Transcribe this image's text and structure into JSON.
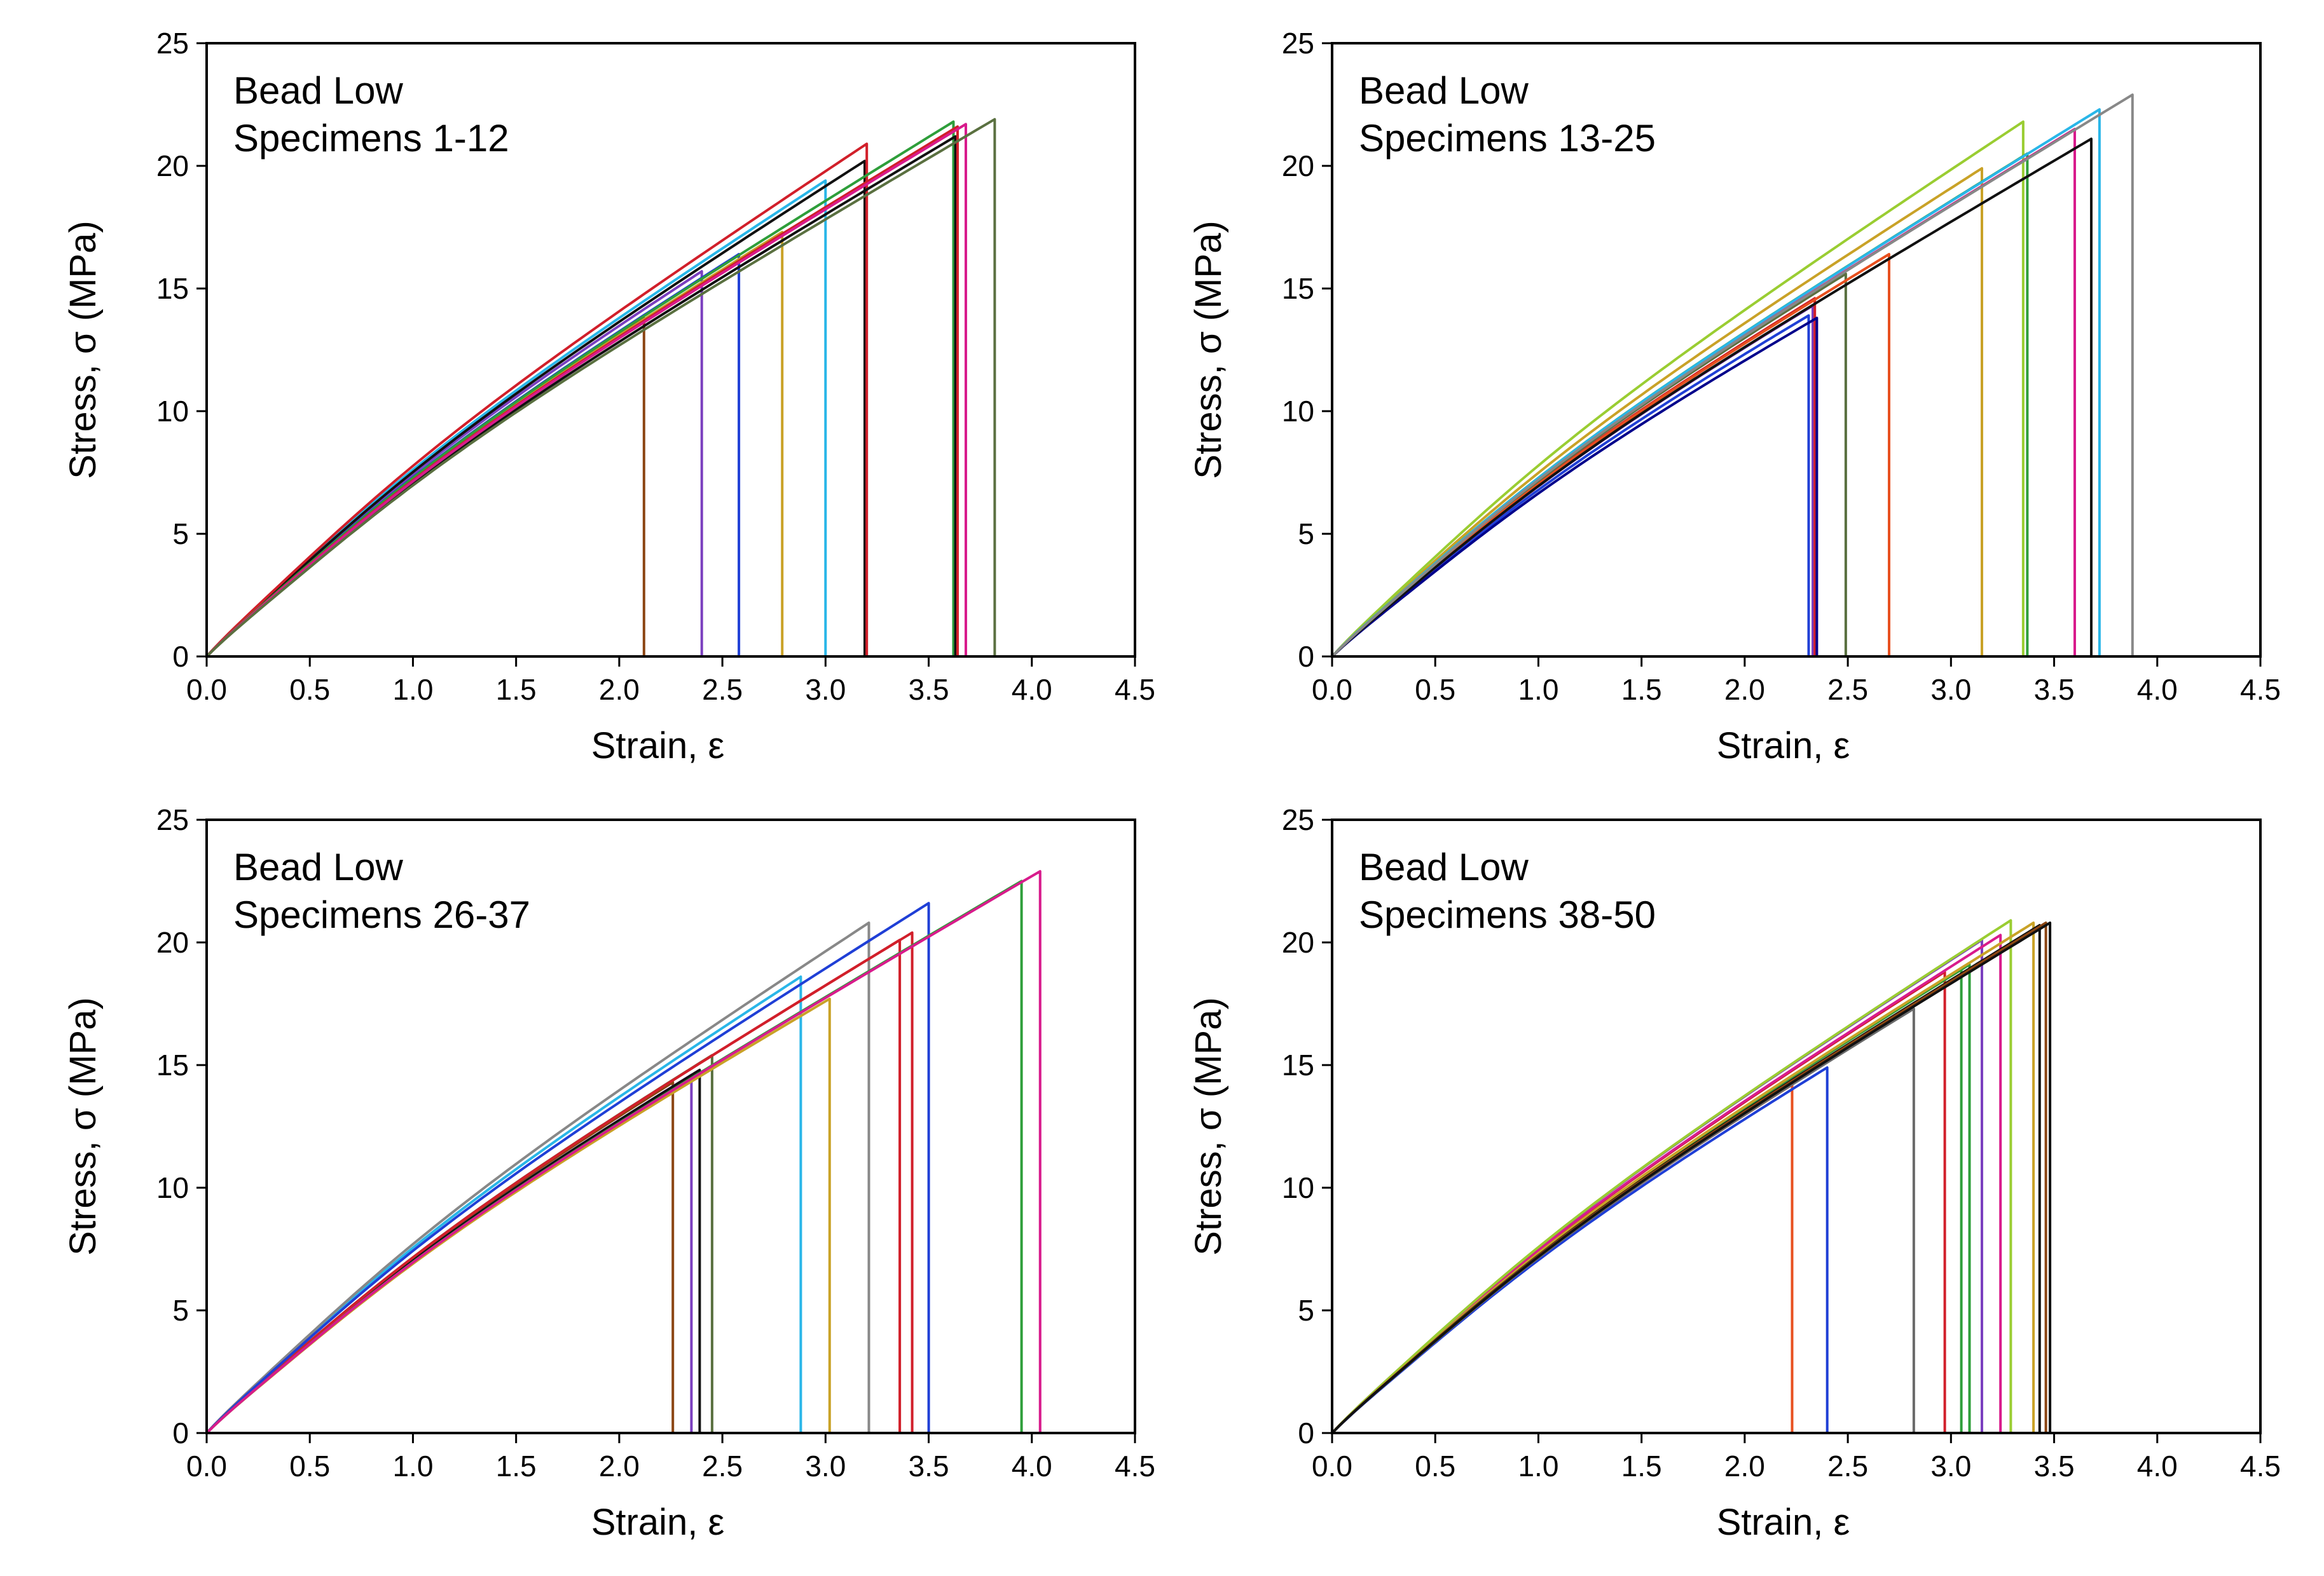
{
  "colors": {
    "palette": [
      "#8b4513",
      "#7b3fbf",
      "#1f3fd6",
      "#c9a227",
      "#29b6e8",
      "#111111",
      "#d11f2a",
      "#2e9e3a",
      "#d81b8c",
      "#5a7040",
      "#888888",
      "#9acd32",
      "#e8501f",
      "#00008b",
      "#6a6a6a"
    ]
  },
  "chart_data": [
    {
      "type": "line",
      "title": "",
      "annotation_line1": "Bead Low",
      "annotation_line2": "Specimens 1-12",
      "xlabel": "Strain, ε",
      "ylabel": "Stress, σ (MPa)",
      "xlim": [
        0,
        4.5
      ],
      "ylim": [
        0,
        25
      ],
      "xticks": [
        "0.0",
        "0.5",
        "1.0",
        "1.5",
        "2.0",
        "2.5",
        "3.0",
        "3.5",
        "4.0",
        "4.5"
      ],
      "yticks": [
        "0",
        "5",
        "10",
        "15",
        "20",
        "25"
      ],
      "series": [
        {
          "name": "specimen-1",
          "color": "#8b4513",
          "failure_strain": 2.12,
          "peak_stress": 13.8,
          "knee": 0.96
        },
        {
          "name": "specimen-2",
          "color": "#7b3fbf",
          "failure_strain": 2.4,
          "peak_stress": 15.7,
          "knee": 1.0
        },
        {
          "name": "specimen-3",
          "color": "#1f3fd6",
          "failure_strain": 2.58,
          "peak_stress": 16.4,
          "knee": 1.0
        },
        {
          "name": "specimen-4",
          "color": "#c9a227",
          "failure_strain": 2.79,
          "peak_stress": 17.3,
          "knee": 1.0
        },
        {
          "name": "specimen-5",
          "color": "#29b6e8",
          "failure_strain": 3.0,
          "peak_stress": 19.4,
          "knee": 1.02
        },
        {
          "name": "specimen-6",
          "color": "#111111",
          "failure_strain": 3.19,
          "peak_stress": 20.2,
          "knee": 1.0
        },
        {
          "name": "specimen-7",
          "color": "#d11f2a",
          "failure_strain": 3.2,
          "peak_stress": 20.9,
          "knee": 1.03
        },
        {
          "name": "specimen-8",
          "color": "#2e9e3a",
          "failure_strain": 3.62,
          "peak_stress": 21.8,
          "knee": 0.98
        },
        {
          "name": "specimen-9",
          "color": "#111111",
          "failure_strain": 3.63,
          "peak_stress": 21.2,
          "knee": 0.97
        },
        {
          "name": "specimen-10",
          "color": "#d11f2a",
          "failure_strain": 3.64,
          "peak_stress": 21.6,
          "knee": 0.99
        },
        {
          "name": "specimen-11",
          "color": "#d81b8c",
          "failure_strain": 3.68,
          "peak_stress": 21.7,
          "knee": 0.98
        },
        {
          "name": "specimen-12",
          "color": "#5a7040",
          "failure_strain": 3.82,
          "peak_stress": 21.9,
          "knee": 0.97
        }
      ]
    },
    {
      "type": "line",
      "title": "",
      "annotation_line1": "Bead Low",
      "annotation_line2": "Specimens 13-25",
      "xlabel": "Strain, ε",
      "ylabel": "Stress, σ (MPa)",
      "xlim": [
        0,
        4.5
      ],
      "ylim": [
        0,
        25
      ],
      "xticks": [
        "0.0",
        "0.5",
        "1.0",
        "1.5",
        "2.0",
        "2.5",
        "3.0",
        "3.5",
        "4.0",
        "4.5"
      ],
      "yticks": [
        "0",
        "5",
        "10",
        "15",
        "20",
        "25"
      ],
      "series": [
        {
          "name": "specimen-13",
          "color": "#1f3fd6",
          "failure_strain": 2.31,
          "peak_stress": 13.9,
          "knee": 1.0
        },
        {
          "name": "specimen-14",
          "color": "#7b3fbf",
          "failure_strain": 2.33,
          "peak_stress": 14.3,
          "knee": 1.0
        },
        {
          "name": "specimen-15",
          "color": "#d11f2a",
          "failure_strain": 2.34,
          "peak_stress": 14.6,
          "knee": 1.0
        },
        {
          "name": "specimen-16",
          "color": "#00008b",
          "failure_strain": 2.35,
          "peak_stress": 13.8,
          "knee": 1.0
        },
        {
          "name": "specimen-17",
          "color": "#5a7040",
          "failure_strain": 2.49,
          "peak_stress": 15.6,
          "knee": 1.0
        },
        {
          "name": "specimen-18",
          "color": "#e8501f",
          "failure_strain": 2.7,
          "peak_stress": 16.4,
          "knee": 1.0
        },
        {
          "name": "specimen-19",
          "color": "#c9a227",
          "failure_strain": 3.15,
          "peak_stress": 19.9,
          "knee": 1.0
        },
        {
          "name": "specimen-20",
          "color": "#9acd32",
          "failure_strain": 3.35,
          "peak_stress": 21.8,
          "knee": 1.0
        },
        {
          "name": "specimen-21",
          "color": "#2e9e3a",
          "failure_strain": 3.37,
          "peak_stress": 20.5,
          "knee": 1.0
        },
        {
          "name": "specimen-22",
          "color": "#d81b8c",
          "failure_strain": 3.6,
          "peak_stress": 21.5,
          "knee": 1.0
        },
        {
          "name": "specimen-23",
          "color": "#111111",
          "failure_strain": 3.68,
          "peak_stress": 21.1,
          "knee": 1.0
        },
        {
          "name": "specimen-24",
          "color": "#29b6e8",
          "failure_strain": 3.72,
          "peak_stress": 22.3,
          "knee": 1.0
        },
        {
          "name": "specimen-25",
          "color": "#888888",
          "failure_strain": 3.88,
          "peak_stress": 22.9,
          "knee": 1.0
        }
      ]
    },
    {
      "type": "line",
      "title": "",
      "annotation_line1": "Bead Low",
      "annotation_line2": "Specimens 26-37",
      "xlabel": "Strain, ε",
      "ylabel": "Stress, σ (MPa)",
      "xlim": [
        0,
        4.5
      ],
      "ylim": [
        0,
        25
      ],
      "xticks": [
        "0.0",
        "0.5",
        "1.0",
        "1.5",
        "2.0",
        "2.5",
        "3.0",
        "3.5",
        "4.0",
        "4.5"
      ],
      "yticks": [
        "0",
        "5",
        "10",
        "15",
        "20",
        "25"
      ],
      "series": [
        {
          "name": "specimen-26",
          "color": "#8b4513",
          "failure_strain": 2.26,
          "peak_stress": 14.3,
          "knee": 1.0
        },
        {
          "name": "specimen-27",
          "color": "#7b3fbf",
          "failure_strain": 2.35,
          "peak_stress": 14.6,
          "knee": 1.0
        },
        {
          "name": "specimen-28",
          "color": "#111111",
          "failure_strain": 2.39,
          "peak_stress": 14.8,
          "knee": 1.0
        },
        {
          "name": "specimen-29",
          "color": "#5a7040",
          "failure_strain": 2.45,
          "peak_stress": 15.4,
          "knee": 1.0
        },
        {
          "name": "specimen-30",
          "color": "#29b6e8",
          "failure_strain": 2.88,
          "peak_stress": 18.6,
          "knee": 1.0
        },
        {
          "name": "specimen-31",
          "color": "#c9a227",
          "failure_strain": 3.02,
          "peak_stress": 17.7,
          "knee": 1.0
        },
        {
          "name": "specimen-32",
          "color": "#888888",
          "failure_strain": 3.21,
          "peak_stress": 20.8,
          "knee": 1.0
        },
        {
          "name": "specimen-33",
          "color": "#d11f2a",
          "failure_strain": 3.36,
          "peak_stress": 20.1,
          "knee": 1.0
        },
        {
          "name": "specimen-34",
          "color": "#d11f2a",
          "failure_strain": 3.42,
          "peak_stress": 20.4,
          "knee": 1.0
        },
        {
          "name": "specimen-35",
          "color": "#1f3fd6",
          "failure_strain": 3.5,
          "peak_stress": 21.6,
          "knee": 1.0
        },
        {
          "name": "specimen-36",
          "color": "#2e9e3a",
          "failure_strain": 3.95,
          "peak_stress": 22.5,
          "knee": 1.0
        },
        {
          "name": "specimen-37",
          "color": "#d81b8c",
          "failure_strain": 4.04,
          "peak_stress": 22.9,
          "knee": 1.0
        }
      ]
    },
    {
      "type": "line",
      "title": "",
      "annotation_line1": "Bead Low",
      "annotation_line2": "Specimens 38-50",
      "xlabel": "Strain, ε",
      "ylabel": "Stress, σ (MPa)",
      "xlim": [
        0,
        4.5
      ],
      "ylim": [
        0,
        25
      ],
      "xticks": [
        "0.0",
        "0.5",
        "1.0",
        "1.5",
        "2.0",
        "2.5",
        "3.0",
        "3.5",
        "4.0",
        "4.5"
      ],
      "yticks": [
        "0",
        "5",
        "10",
        "15",
        "20",
        "25"
      ],
      "series": [
        {
          "name": "specimen-38",
          "color": "#e8501f",
          "failure_strain": 2.23,
          "peak_stress": 14.2,
          "knee": 1.0
        },
        {
          "name": "specimen-39",
          "color": "#1f3fd6",
          "failure_strain": 2.4,
          "peak_stress": 14.9,
          "knee": 1.0
        },
        {
          "name": "specimen-40",
          "color": "#6a6a6a",
          "failure_strain": 2.82,
          "peak_stress": 17.3,
          "knee": 1.0
        },
        {
          "name": "specimen-41",
          "color": "#d11f2a",
          "failure_strain": 2.97,
          "peak_stress": 18.8,
          "knee": 1.0
        },
        {
          "name": "specimen-42",
          "color": "#2e9e3a",
          "failure_strain": 3.05,
          "peak_stress": 18.9,
          "knee": 1.0
        },
        {
          "name": "specimen-43",
          "color": "#2e9e3a",
          "failure_strain": 3.09,
          "peak_stress": 19.1,
          "knee": 1.0
        },
        {
          "name": "specimen-44",
          "color": "#7b3fbf",
          "failure_strain": 3.15,
          "peak_stress": 20.1,
          "knee": 1.0
        },
        {
          "name": "specimen-45",
          "color": "#d81b8c",
          "failure_strain": 3.24,
          "peak_stress": 20.3,
          "knee": 1.0
        },
        {
          "name": "specimen-46",
          "color": "#9acd32",
          "failure_strain": 3.29,
          "peak_stress": 20.9,
          "knee": 1.0
        },
        {
          "name": "specimen-47",
          "color": "#c9a227",
          "failure_strain": 3.4,
          "peak_stress": 20.8,
          "knee": 1.0
        },
        {
          "name": "specimen-48",
          "color": "#111111",
          "failure_strain": 3.43,
          "peak_stress": 20.7,
          "knee": 1.0
        },
        {
          "name": "specimen-49",
          "color": "#8b4513",
          "failure_strain": 3.46,
          "peak_stress": 20.8,
          "knee": 1.0
        },
        {
          "name": "specimen-50",
          "color": "#111111",
          "failure_strain": 3.48,
          "peak_stress": 20.8,
          "knee": 1.0
        }
      ]
    }
  ]
}
